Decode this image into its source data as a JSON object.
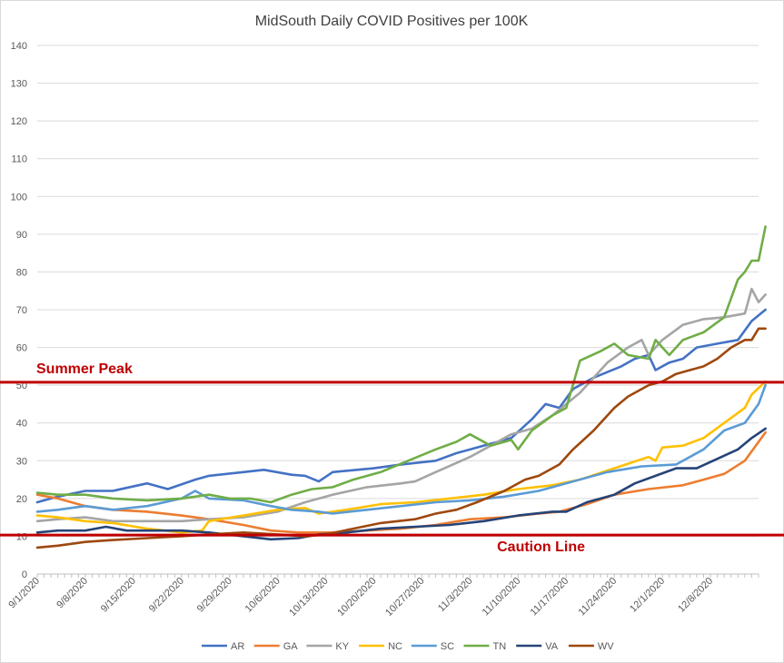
{
  "chart_data": {
    "type": "line",
    "title": "MidSouth Daily COVID Positives per 100K",
    "xlabel": "",
    "ylabel": "",
    "ylim": [
      0,
      140
    ],
    "yticks": [
      0,
      10,
      20,
      30,
      40,
      50,
      60,
      70,
      80,
      90,
      100,
      110,
      120,
      130,
      140
    ],
    "x_start": "9/1/2020",
    "x_end": "12/15/2020",
    "x_ticks": [
      "9/1/2020",
      "9/8/2020",
      "9/15/2020",
      "9/22/2020",
      "9/29/2020",
      "10/6/2020",
      "10/13/2020",
      "10/20/2020",
      "10/27/2020",
      "11/3/2020",
      "11/10/2020",
      "11/17/2020",
      "11/24/2020",
      "12/1/2020",
      "12/8/2020"
    ],
    "grid": true,
    "legend_position": "bottom",
    "reference_lines": [
      {
        "label": "Summer Peak",
        "value": 50.8,
        "color": "#c00000"
      },
      {
        "label": "Caution Line",
        "value": 10.3,
        "color": "#c00000"
      }
    ],
    "series": [
      {
        "name": "AR",
        "color": "#4472c4",
        "points": [
          [
            "9/1/2020",
            19
          ],
          [
            "9/4/2020",
            20.5
          ],
          [
            "9/8/2020",
            22
          ],
          [
            "9/12/2020",
            22
          ],
          [
            "9/17/2020",
            24
          ],
          [
            "9/20/2020",
            22.5
          ],
          [
            "9/24/2020",
            25
          ],
          [
            "9/26/2020",
            26
          ],
          [
            "10/1/2020",
            27
          ],
          [
            "10/4/2020",
            27.6
          ],
          [
            "10/8/2020",
            26.3
          ],
          [
            "10/10/2020",
            26
          ],
          [
            "10/12/2020",
            24.5
          ],
          [
            "10/14/2020",
            27
          ],
          [
            "10/20/2020",
            28
          ],
          [
            "10/24/2020",
            29
          ],
          [
            "10/29/2020",
            30
          ],
          [
            "11/1/2020",
            32
          ],
          [
            "11/4/2020",
            33.5
          ],
          [
            "11/9/2020",
            36
          ],
          [
            "11/12/2020",
            41
          ],
          [
            "11/14/2020",
            45
          ],
          [
            "11/16/2020",
            44
          ],
          [
            "11/18/2020",
            49
          ],
          [
            "11/21/2020",
            52
          ],
          [
            "11/25/2020",
            55
          ],
          [
            "11/27/2020",
            57
          ],
          [
            "11/29/2020",
            58
          ],
          [
            "11/30/2020",
            54
          ],
          [
            "12/2/2020",
            56
          ],
          [
            "12/4/2020",
            57
          ],
          [
            "12/6/2020",
            60
          ],
          [
            "12/9/2020",
            61
          ],
          [
            "12/12/2020",
            62
          ],
          [
            "12/14/2020",
            67
          ],
          [
            "12/16/2020",
            70
          ]
        ]
      },
      {
        "name": "GA",
        "color": "#ed7d31",
        "points": [
          [
            "9/1/2020",
            21
          ],
          [
            "9/4/2020",
            20
          ],
          [
            "9/8/2020",
            18
          ],
          [
            "9/12/2020",
            17
          ],
          [
            "9/17/2020",
            16.5
          ],
          [
            "9/22/2020",
            15.5
          ],
          [
            "9/26/2020",
            14.5
          ],
          [
            "10/1/2020",
            13
          ],
          [
            "10/5/2020",
            11.5
          ],
          [
            "10/9/2020",
            11
          ],
          [
            "10/14/2020",
            11
          ],
          [
            "10/19/2020",
            11.5
          ],
          [
            "10/24/2020",
            12
          ],
          [
            "10/29/2020",
            13
          ],
          [
            "11/3/2020",
            14.5
          ],
          [
            "11/8/2020",
            15
          ],
          [
            "11/13/2020",
            16
          ],
          [
            "11/16/2020",
            16.5
          ],
          [
            "11/20/2020",
            18.5
          ],
          [
            "11/24/2020",
            21
          ],
          [
            "11/29/2020",
            22.5
          ],
          [
            "12/4/2020",
            23.5
          ],
          [
            "12/7/2020",
            25
          ],
          [
            "12/10/2020",
            26.5
          ],
          [
            "12/13/2020",
            30
          ],
          [
            "12/16/2020",
            37.5
          ]
        ]
      },
      {
        "name": "KY",
        "color": "#a5a5a5",
        "points": [
          [
            "9/1/2020",
            14
          ],
          [
            "9/4/2020",
            14.5
          ],
          [
            "9/8/2020",
            15
          ],
          [
            "9/12/2020",
            14
          ],
          [
            "9/17/2020",
            14
          ],
          [
            "9/22/2020",
            14
          ],
          [
            "9/26/2020",
            14.5
          ],
          [
            "10/1/2020",
            15
          ],
          [
            "10/6/2020",
            16.5
          ],
          [
            "10/10/2020",
            19
          ],
          [
            "10/14/2020",
            21
          ],
          [
            "10/19/2020",
            23
          ],
          [
            "10/24/2020",
            24
          ],
          [
            "10/26/2020",
            24.5
          ],
          [
            "10/29/2020",
            27
          ],
          [
            "11/3/2020",
            31
          ],
          [
            "11/6/2020",
            34
          ],
          [
            "11/9/2020",
            37
          ],
          [
            "11/12/2020",
            38.5
          ],
          [
            "11/15/2020",
            42
          ],
          [
            "11/19/2020",
            48
          ],
          [
            "11/23/2020",
            56
          ],
          [
            "11/26/2020",
            60
          ],
          [
            "11/28/2020",
            62
          ],
          [
            "11/29/2020",
            58
          ],
          [
            "12/1/2020",
            62
          ],
          [
            "12/4/2020",
            66
          ],
          [
            "12/7/2020",
            67.5
          ],
          [
            "12/10/2020",
            68
          ],
          [
            "12/13/2020",
            69
          ],
          [
            "12/14/2020",
            75.5
          ],
          [
            "12/15/2020",
            72
          ],
          [
            "12/16/2020",
            74
          ]
        ]
      },
      {
        "name": "NC",
        "color": "#ffc000",
        "points": [
          [
            "9/1/2020",
            15.5
          ],
          [
            "9/4/2020",
            15
          ],
          [
            "9/8/2020",
            14
          ],
          [
            "9/12/2020",
            13.5
          ],
          [
            "9/17/2020",
            12
          ],
          [
            "9/22/2020",
            11
          ],
          [
            "9/25/2020",
            11.5
          ],
          [
            "9/26/2020",
            14
          ],
          [
            "10/1/2020",
            15.5
          ],
          [
            "10/6/2020",
            17
          ],
          [
            "10/10/2020",
            17.5
          ],
          [
            "10/12/2020",
            16
          ],
          [
            "10/16/2020",
            17
          ],
          [
            "10/21/2020",
            18.5
          ],
          [
            "10/26/2020",
            19
          ],
          [
            "10/31/2020",
            20
          ],
          [
            "11/5/2020",
            21
          ],
          [
            "11/10/2020",
            22.5
          ],
          [
            "11/15/2020",
            23.5
          ],
          [
            "11/19/2020",
            25
          ],
          [
            "11/24/2020",
            28
          ],
          [
            "11/29/2020",
            31
          ],
          [
            "11/30/2020",
            30
          ],
          [
            "12/1/2020",
            33.5
          ],
          [
            "12/4/2020",
            34
          ],
          [
            "12/7/2020",
            36
          ],
          [
            "12/10/2020",
            40
          ],
          [
            "12/13/2020",
            44
          ],
          [
            "12/14/2020",
            47.5
          ],
          [
            "12/16/2020",
            51
          ]
        ]
      },
      {
        "name": "SC",
        "color": "#5b9bd5",
        "points": [
          [
            "9/1/2020",
            16.5
          ],
          [
            "9/4/2020",
            17
          ],
          [
            "9/8/2020",
            18
          ],
          [
            "9/12/2020",
            17
          ],
          [
            "9/17/2020",
            18
          ],
          [
            "9/22/2020",
            20
          ],
          [
            "9/24/2020",
            22
          ],
          [
            "9/26/2020",
            20
          ],
          [
            "10/1/2020",
            19.5
          ],
          [
            "10/5/2020",
            18
          ],
          [
            "10/8/2020",
            17
          ],
          [
            "10/12/2020",
            16.5
          ],
          [
            "10/14/2020",
            16
          ],
          [
            "10/19/2020",
            17
          ],
          [
            "10/24/2020",
            18
          ],
          [
            "10/29/2020",
            19
          ],
          [
            "11/3/2020",
            19.5
          ],
          [
            "11/8/2020",
            20.5
          ],
          [
            "11/13/2020",
            22
          ],
          [
            "11/18/2020",
            24.5
          ],
          [
            "11/23/2020",
            27
          ],
          [
            "11/28/2020",
            28.5
          ],
          [
            "12/3/2020",
            29
          ],
          [
            "12/7/2020",
            33
          ],
          [
            "12/10/2020",
            38
          ],
          [
            "12/13/2020",
            40
          ],
          [
            "12/15/2020",
            45
          ],
          [
            "12/16/2020",
            50
          ]
        ]
      },
      {
        "name": "TN",
        "color": "#70ad47",
        "points": [
          [
            "9/1/2020",
            21.5
          ],
          [
            "9/4/2020",
            21
          ],
          [
            "9/8/2020",
            21
          ],
          [
            "9/12/2020",
            20
          ],
          [
            "9/17/2020",
            19.5
          ],
          [
            "9/22/2020",
            20
          ],
          [
            "9/26/2020",
            21
          ],
          [
            "9/29/2020",
            20
          ],
          [
            "10/2/2020",
            20
          ],
          [
            "10/5/2020",
            19
          ],
          [
            "10/8/2020",
            21
          ],
          [
            "10/11/2020",
            22.5
          ],
          [
            "10/14/2020",
            23
          ],
          [
            "10/17/2020",
            25
          ],
          [
            "10/21/2020",
            27
          ],
          [
            "10/25/2020",
            30
          ],
          [
            "10/29/2020",
            33
          ],
          [
            "11/1/2020",
            35
          ],
          [
            "11/3/2020",
            37
          ],
          [
            "11/6/2020",
            34
          ],
          [
            "11/9/2020",
            35.5
          ],
          [
            "11/10/2020",
            33
          ],
          [
            "11/12/2020",
            38
          ],
          [
            "11/15/2020",
            42
          ],
          [
            "11/17/2020",
            44
          ],
          [
            "11/19/2020",
            56.5
          ],
          [
            "11/22/2020",
            59
          ],
          [
            "11/24/2020",
            61
          ],
          [
            "11/26/2020",
            58
          ],
          [
            "11/29/2020",
            57
          ],
          [
            "11/30/2020",
            62
          ],
          [
            "12/2/2020",
            58
          ],
          [
            "12/4/2020",
            62
          ],
          [
            "12/7/2020",
            64
          ],
          [
            "12/10/2020",
            68
          ],
          [
            "12/12/2020",
            78
          ],
          [
            "12/13/2020",
            80
          ],
          [
            "12/14/2020",
            83
          ],
          [
            "12/15/2020",
            83
          ],
          [
            "12/16/2020",
            92
          ]
        ]
      },
      {
        "name": "VA",
        "color": "#264478",
        "points": [
          [
            "9/1/2020",
            11
          ],
          [
            "9/4/2020",
            11.5
          ],
          [
            "9/8/2020",
            11.5
          ],
          [
            "9/11/2020",
            12.5
          ],
          [
            "9/14/2020",
            11.5
          ],
          [
            "9/18/2020",
            11.5
          ],
          [
            "9/22/2020",
            11.5
          ],
          [
            "9/26/2020",
            11
          ],
          [
            "10/1/2020",
            10
          ],
          [
            "10/5/2020",
            9.2
          ],
          [
            "10/9/2020",
            9.5
          ],
          [
            "10/12/2020",
            10.5
          ],
          [
            "10/16/2020",
            11
          ],
          [
            "10/21/2020",
            12
          ],
          [
            "10/26/2020",
            12.5
          ],
          [
            "10/31/2020",
            13
          ],
          [
            "11/5/2020",
            14
          ],
          [
            "11/10/2020",
            15.5
          ],
          [
            "11/15/2020",
            16.5
          ],
          [
            "11/17/2020",
            16.5
          ],
          [
            "11/20/2020",
            19
          ],
          [
            "11/24/2020",
            21
          ],
          [
            "11/27/2020",
            24
          ],
          [
            "11/30/2020",
            26
          ],
          [
            "12/3/2020",
            28
          ],
          [
            "12/6/2020",
            28
          ],
          [
            "12/9/2020",
            30.5
          ],
          [
            "12/12/2020",
            33
          ],
          [
            "12/14/2020",
            36
          ],
          [
            "12/16/2020",
            38.5
          ]
        ]
      },
      {
        "name": "WV",
        "color": "#9e480e",
        "points": [
          [
            "9/1/2020",
            7
          ],
          [
            "9/4/2020",
            7.5
          ],
          [
            "9/8/2020",
            8.5
          ],
          [
            "9/12/2020",
            9
          ],
          [
            "9/17/2020",
            9.5
          ],
          [
            "9/22/2020",
            10
          ],
          [
            "9/26/2020",
            10.5
          ],
          [
            "10/1/2020",
            11
          ],
          [
            "10/6/2020",
            10.5
          ],
          [
            "10/10/2020",
            10
          ],
          [
            "10/13/2020",
            10.5
          ],
          [
            "10/17/2020",
            12
          ],
          [
            "10/21/2020",
            13.5
          ],
          [
            "10/26/2020",
            14.5
          ],
          [
            "10/29/2020",
            16
          ],
          [
            "11/1/2020",
            17
          ],
          [
            "11/4/2020",
            19
          ],
          [
            "11/8/2020",
            22
          ],
          [
            "11/11/2020",
            25
          ],
          [
            "11/13/2020",
            26
          ],
          [
            "11/16/2020",
            29
          ],
          [
            "11/18/2020",
            33
          ],
          [
            "11/21/2020",
            38
          ],
          [
            "11/24/2020",
            44
          ],
          [
            "11/26/2020",
            47
          ],
          [
            "11/29/2020",
            50
          ],
          [
            "12/1/2020",
            51
          ],
          [
            "12/3/2020",
            53
          ],
          [
            "12/5/2020",
            54
          ],
          [
            "12/7/2020",
            55
          ],
          [
            "12/9/2020",
            57
          ],
          [
            "12/11/2020",
            60
          ],
          [
            "12/13/2020",
            62
          ],
          [
            "12/14/2020",
            62
          ],
          [
            "12/15/2020",
            65
          ],
          [
            "12/16/2020",
            65
          ]
        ]
      }
    ]
  }
}
